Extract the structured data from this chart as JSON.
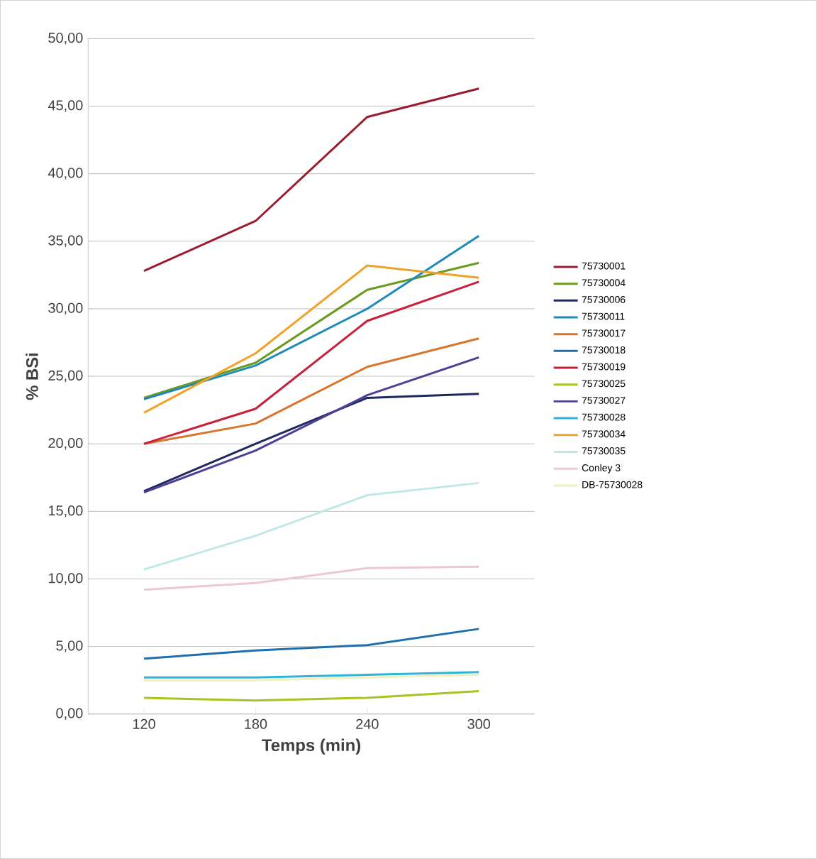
{
  "chart_data": {
    "type": "line",
    "xlabel": "Temps (min)",
    "ylabel": "% BSi",
    "categories": [
      "120",
      "180",
      "240",
      "300"
    ],
    "ylim": [
      0,
      50
    ],
    "yticks": [
      {
        "value": 0,
        "label": "0,00"
      },
      {
        "value": 5,
        "label": "5,00"
      },
      {
        "value": 10,
        "label": "10,00"
      },
      {
        "value": 15,
        "label": "15,00"
      },
      {
        "value": 20,
        "label": "20,00"
      },
      {
        "value": 25,
        "label": "25,00"
      },
      {
        "value": 30,
        "label": "30,00"
      },
      {
        "value": 35,
        "label": "35,00"
      },
      {
        "value": 40,
        "label": "40,00"
      },
      {
        "value": 45,
        "label": "45,00"
      },
      {
        "value": 50,
        "label": "50,00"
      }
    ],
    "grid": "y",
    "legend": "right",
    "marker": "none",
    "line_style": "solid",
    "series": [
      {
        "name": "75730001",
        "color": "#9b1c2e",
        "values": [
          32.8,
          36.5,
          44.2,
          46.3
        ]
      },
      {
        "name": "75730004",
        "color": "#6a9a1f",
        "values": [
          23.4,
          26.0,
          31.4,
          33.4
        ]
      },
      {
        "name": "75730006",
        "color": "#1f2a5c",
        "values": [
          16.5,
          20.0,
          23.4,
          23.7
        ]
      },
      {
        "name": "75730011",
        "color": "#1e8ab8",
        "values": [
          23.3,
          25.8,
          30.0,
          35.4
        ]
      },
      {
        "name": "75730017",
        "color": "#d9742c",
        "values": [
          20.0,
          21.5,
          25.7,
          27.8
        ]
      },
      {
        "name": "75730018",
        "color": "#1f6fae",
        "values": [
          4.1,
          4.7,
          5.1,
          6.3
        ]
      },
      {
        "name": "75730019",
        "color": "#c8203a",
        "values": [
          20.0,
          22.6,
          29.1,
          32.0
        ]
      },
      {
        "name": "75730025",
        "color": "#a8c422",
        "values": [
          1.2,
          1.0,
          1.2,
          1.7
        ]
      },
      {
        "name": "75730027",
        "color": "#4e3f98",
        "values": [
          16.4,
          19.5,
          23.6,
          26.4
        ]
      },
      {
        "name": "75730028",
        "color": "#2fb3d8",
        "values": [
          2.7,
          2.7,
          2.9,
          3.1
        ]
      },
      {
        "name": "75730034",
        "color": "#f0a22a",
        "values": [
          22.3,
          26.7,
          33.2,
          32.3
        ]
      },
      {
        "name": "75730035",
        "color": "#bfe8e6",
        "values": [
          10.7,
          13.2,
          16.2,
          17.1
        ]
      },
      {
        "name": "Conley 3",
        "color": "#ecc8d4",
        "values": [
          9.2,
          9.7,
          10.8,
          10.9
        ]
      },
      {
        "name": "DB-75730028",
        "color": "#eef0c0",
        "values": [
          2.5,
          2.5,
          2.7,
          2.9
        ]
      }
    ]
  }
}
